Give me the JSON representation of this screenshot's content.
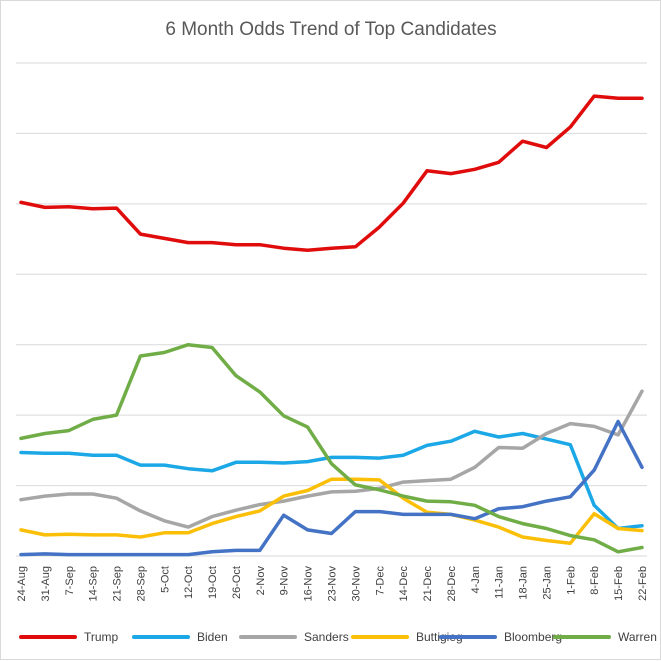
{
  "chart_data": {
    "type": "line",
    "title": "6 Month Odds Trend of Top Candidates",
    "xlabel": "",
    "ylabel": "",
    "ylim": [
      0,
      70
    ],
    "grid": true,
    "legend_position": "bottom",
    "categories": [
      "24-Aug",
      "31-Aug",
      "7-Sep",
      "14-Sep",
      "21-Sep",
      "28-Sep",
      "5-Oct",
      "12-Oct",
      "19-Oct",
      "26-Oct",
      "2-Nov",
      "9-Nov",
      "16-Nov",
      "23-Nov",
      "30-Nov",
      "7-Dec",
      "14-Dec",
      "21-Dec",
      "28-Dec",
      "4-Jan",
      "11-Jan",
      "18-Jan",
      "25-Jan",
      "1-Feb",
      "8-Feb",
      "15-Feb",
      "22-Feb"
    ],
    "series": [
      {
        "name": "Trump",
        "color": "#e00c0c",
        "values": [
          50.2,
          49.5,
          49.6,
          49.3,
          49.4,
          45.7,
          45.1,
          44.5,
          44.5,
          44.2,
          44.2,
          43.7,
          43.4,
          43.7,
          43.9,
          46.7,
          50.1,
          54.7,
          54.3,
          54.9,
          55.9,
          58.9,
          58.0,
          60.9,
          65.3,
          65.0,
          65.0
        ]
      },
      {
        "name": "Biden",
        "color": "#1ca8e6",
        "values": [
          14.7,
          14.6,
          14.6,
          14.3,
          14.3,
          12.9,
          12.9,
          12.4,
          12.1,
          13.3,
          13.3,
          13.2,
          13.4,
          14.0,
          14.0,
          13.9,
          14.3,
          15.7,
          16.3,
          17.7,
          16.9,
          17.4,
          16.6,
          15.8,
          7.2,
          3.9,
          4.3
        ]
      },
      {
        "name": "Sanders",
        "color": "#a6a6a6",
        "values": [
          8.0,
          8.5,
          8.8,
          8.8,
          8.2,
          6.4,
          5.0,
          4.1,
          5.6,
          6.5,
          7.3,
          7.8,
          8.5,
          9.1,
          9.2,
          9.6,
          10.5,
          10.7,
          10.9,
          12.6,
          15.4,
          15.3,
          17.4,
          18.8,
          18.4,
          17.2,
          23.4
        ]
      },
      {
        "name": "Buttigieg",
        "color": "#fbbf07",
        "values": [
          3.7,
          3.0,
          3.1,
          3.0,
          3.0,
          2.7,
          3.3,
          3.3,
          4.6,
          5.6,
          6.4,
          8.5,
          9.3,
          10.9,
          10.9,
          10.8,
          8.2,
          6.2,
          5.9,
          5.1,
          4.1,
          2.7,
          2.2,
          1.8,
          6.0,
          3.9,
          3.6
        ]
      },
      {
        "name": "Bloomberg",
        "color": "#4472c4",
        "values": [
          0.2,
          0.3,
          0.2,
          0.2,
          0.2,
          0.2,
          0.2,
          0.2,
          0.6,
          0.8,
          0.8,
          5.8,
          3.7,
          3.2,
          6.3,
          6.3,
          5.9,
          5.9,
          5.9,
          5.3,
          6.7,
          7.0,
          7.8,
          8.4,
          12.2,
          19.1,
          12.6
        ]
      },
      {
        "name": "Warren",
        "color": "#70ad47",
        "values": [
          16.7,
          17.4,
          17.8,
          19.4,
          20.0,
          28.4,
          28.9,
          30.0,
          29.6,
          25.6,
          23.3,
          19.9,
          18.3,
          13.1,
          10.1,
          9.4,
          8.5,
          7.8,
          7.7,
          7.2,
          5.6,
          4.6,
          3.9,
          2.9,
          2.3,
          0.6,
          1.2
        ]
      }
    ]
  }
}
